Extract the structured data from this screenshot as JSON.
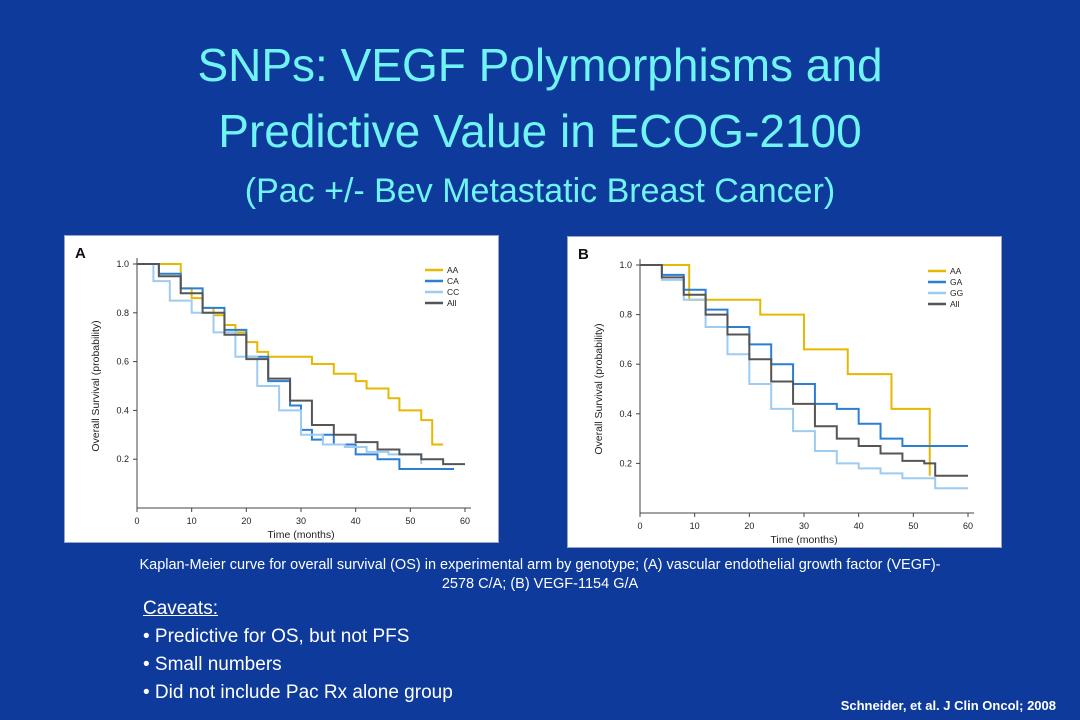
{
  "slide": {
    "title_line1": "SNPs: VEGF Polymorphisms and",
    "title_line2": "Predictive Value in ECOG-2100",
    "title_line3": "(Pac +/- Bev Metastatic Breast Cancer)",
    "caption_line1": "Kaplan-Meier curve for overall survival (OS) in experimental arm by genotype; (A) vascular endothelial growth factor (VEGF)-",
    "caption_line2": "2578 C/A; (B) VEGF-1154 G/A",
    "caveats_heading": "Caveats: ",
    "caveats": [
      "• Predictive for OS, but not PFS",
      "• Small numbers",
      "• Did not include Pac Rx alone group"
    ],
    "citation": "Schneider,  et al. J Clin Oncol;  2008"
  },
  "chart_data": [
    {
      "type": "line",
      "panel_label": "A",
      "xlabel": "Time (months)",
      "ylabel": "Overall Survival (probability)",
      "xlim": [
        0,
        60
      ],
      "ylim": [
        0,
        1.0
      ],
      "xticks": [
        "0",
        "10",
        "20",
        "30",
        "40",
        "50",
        "60"
      ],
      "yticks": [
        "0.2",
        "0.4",
        "0.6",
        "0.8",
        "1.0"
      ],
      "legend_position": "top-right",
      "series": [
        {
          "name": "AA",
          "color": "#e6b800",
          "x": [
            0,
            6,
            8,
            10,
            12,
            14,
            16,
            18,
            20,
            22,
            24,
            28,
            32,
            36,
            40,
            42,
            46,
            48,
            50,
            52,
            54,
            56
          ],
          "y": [
            1.0,
            1.0,
            0.9,
            0.86,
            0.82,
            0.79,
            0.75,
            0.72,
            0.68,
            0.64,
            0.62,
            0.62,
            0.59,
            0.55,
            0.52,
            0.49,
            0.45,
            0.4,
            0.4,
            0.36,
            0.26,
            0.26
          ]
        },
        {
          "name": "CA",
          "color": "#2a7fd4",
          "x": [
            0,
            4,
            8,
            12,
            16,
            20,
            24,
            28,
            30,
            32,
            34,
            36,
            40,
            44,
            48,
            52,
            54,
            56,
            58
          ],
          "y": [
            1.0,
            0.96,
            0.9,
            0.82,
            0.73,
            0.62,
            0.52,
            0.42,
            0.32,
            0.28,
            0.3,
            0.26,
            0.22,
            0.2,
            0.16,
            0.16,
            0.16,
            0.16,
            0.16
          ]
        },
        {
          "name": "CC",
          "color": "#9ecbf0",
          "x": [
            0,
            3,
            6,
            10,
            14,
            18,
            22,
            26,
            30,
            34,
            38,
            42,
            46,
            50,
            52
          ],
          "y": [
            1.0,
            0.93,
            0.85,
            0.8,
            0.72,
            0.62,
            0.5,
            0.4,
            0.3,
            0.26,
            0.25,
            0.23,
            0.22,
            0.22,
            0.18
          ]
        },
        {
          "name": "All",
          "color": "#555555",
          "x": [
            0,
            4,
            8,
            12,
            16,
            20,
            24,
            28,
            32,
            36,
            40,
            44,
            48,
            52,
            56,
            60
          ],
          "y": [
            1.0,
            0.95,
            0.88,
            0.8,
            0.71,
            0.61,
            0.53,
            0.44,
            0.34,
            0.3,
            0.27,
            0.24,
            0.22,
            0.2,
            0.18,
            0.18
          ]
        }
      ]
    },
    {
      "type": "line",
      "panel_label": "B",
      "xlabel": "Time (months)",
      "ylabel": "Overall Survival (probability)",
      "xlim": [
        0,
        60
      ],
      "ylim": [
        0,
        1.0
      ],
      "xticks": [
        "0",
        "10",
        "20",
        "30",
        "40",
        "50",
        "60"
      ],
      "yticks": [
        "0.2",
        "0.4",
        "0.6",
        "0.8",
        "1.0"
      ],
      "legend_position": "top-right",
      "series": [
        {
          "name": "AA",
          "color": "#e6b800",
          "x": [
            0,
            7,
            9,
            18,
            22,
            30,
            38,
            46,
            49,
            53
          ],
          "y": [
            1.0,
            1.0,
            0.86,
            0.86,
            0.8,
            0.66,
            0.56,
            0.42,
            0.42,
            0.15
          ]
        },
        {
          "name": "GA",
          "color": "#2a7fd4",
          "x": [
            0,
            4,
            8,
            12,
            16,
            20,
            24,
            28,
            32,
            36,
            40,
            44,
            48,
            54,
            60
          ],
          "y": [
            1.0,
            0.96,
            0.9,
            0.82,
            0.75,
            0.68,
            0.6,
            0.52,
            0.44,
            0.42,
            0.36,
            0.3,
            0.27,
            0.27,
            0.27
          ]
        },
        {
          "name": "GG",
          "color": "#9ecbf0",
          "x": [
            0,
            4,
            8,
            12,
            16,
            20,
            24,
            28,
            32,
            36,
            40,
            44,
            48,
            54,
            60
          ],
          "y": [
            1.0,
            0.94,
            0.86,
            0.75,
            0.64,
            0.52,
            0.42,
            0.33,
            0.25,
            0.2,
            0.18,
            0.16,
            0.14,
            0.1,
            0.1
          ]
        },
        {
          "name": "All",
          "color": "#555555",
          "x": [
            0,
            4,
            8,
            12,
            16,
            20,
            24,
            28,
            32,
            36,
            40,
            44,
            48,
            52,
            54,
            60
          ],
          "y": [
            1.0,
            0.95,
            0.88,
            0.8,
            0.72,
            0.62,
            0.53,
            0.44,
            0.35,
            0.3,
            0.27,
            0.24,
            0.21,
            0.2,
            0.15,
            0.15
          ]
        }
      ]
    }
  ]
}
